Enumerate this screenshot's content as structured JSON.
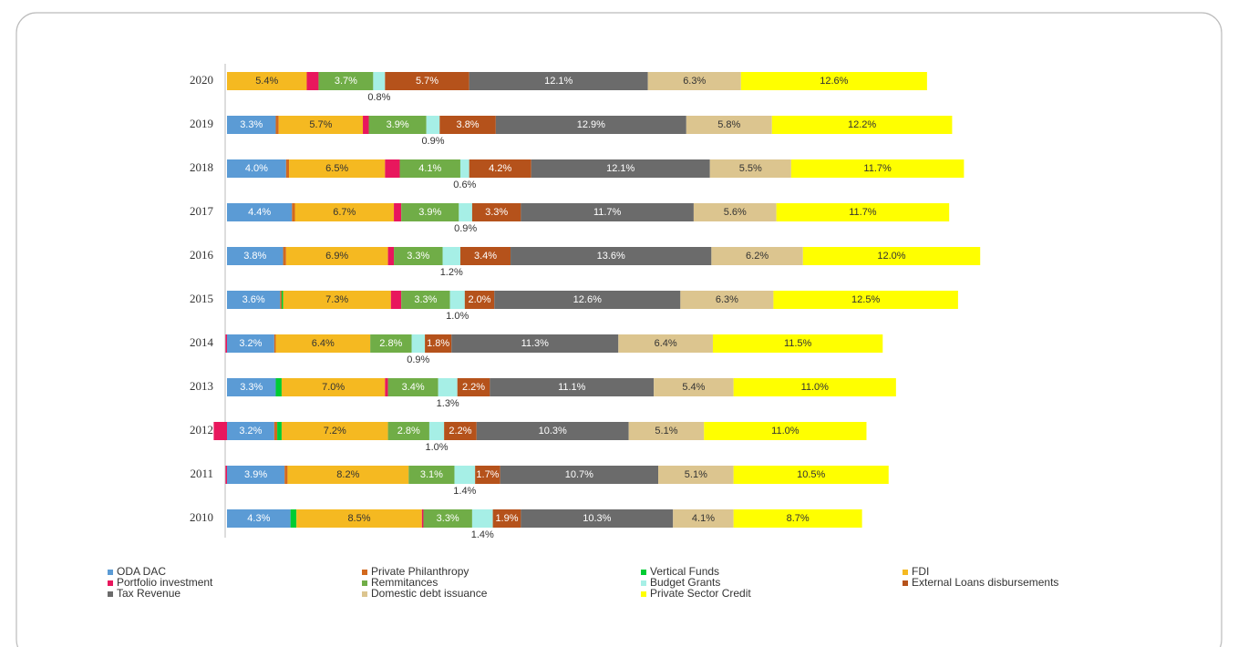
{
  "chart_data": {
    "type": "stacked-bar-horizontal",
    "categories": [
      "2020",
      "2019",
      "2018",
      "2017",
      "2016",
      "2015",
      "2014",
      "2013",
      "2012",
      "2011",
      "2010"
    ],
    "series": [
      {
        "name": "ODA DAC",
        "color": "#5b9bd5",
        "values": [
          null,
          3.3,
          4.0,
          4.4,
          3.8,
          3.6,
          3.2,
          3.3,
          3.2,
          3.9,
          4.3
        ],
        "value_labels": [
          null,
          "3.3%",
          "4.0%",
          "4.4%",
          "3.8%",
          "3.6%",
          "3.2%",
          "3.3%",
          "3.2%",
          "3.9%",
          "4.3%"
        ]
      },
      {
        "name": "Private Philanthropy",
        "color": "#d2691e",
        "values": [
          null,
          0.2,
          0.2,
          0.2,
          0.2,
          0.1,
          0.1,
          null,
          0.2,
          0.2,
          null
        ]
      },
      {
        "name": "Vertical Funds",
        "color": "#00cc33",
        "values": [
          null,
          null,
          null,
          null,
          null,
          0.1,
          null,
          0.4,
          0.3,
          null,
          0.4
        ]
      },
      {
        "name": "FDI",
        "color": "#f5b921",
        "values": [
          5.4,
          5.7,
          6.5,
          6.7,
          6.9,
          7.3,
          6.4,
          7.0,
          7.2,
          8.2,
          8.5
        ],
        "value_labels": [
          "5.4%",
          "5.7%",
          "6.5%",
          "6.7%",
          "6.9%",
          "7.3%",
          "6.4%",
          "7.0%",
          "7.2%",
          "8.2%",
          "8.5%"
        ]
      },
      {
        "name": "Portfolio investment",
        "color": "#e8175d",
        "values": [
          0.8,
          0.4,
          1.0,
          0.5,
          0.4,
          0.7,
          -0.1,
          0.2,
          -0.9,
          -0.1,
          0.1
        ]
      },
      {
        "name": "Remmitances",
        "color": "#70ad47",
        "values": [
          3.7,
          3.9,
          4.1,
          3.9,
          3.3,
          3.3,
          2.8,
          3.4,
          2.8,
          3.1,
          3.3
        ],
        "value_labels": [
          "3.7%",
          "3.9%",
          "4.1%",
          "3.9%",
          "3.3%",
          "3.3%",
          "2.8%",
          "3.4%",
          "2.8%",
          "3.1%",
          "3.3%"
        ]
      },
      {
        "name": "Budget Grants",
        "color": "#a6efe6",
        "values": [
          0.8,
          0.9,
          0.6,
          0.9,
          1.2,
          1.0,
          0.9,
          1.3,
          1.0,
          1.4,
          1.4
        ],
        "value_labels": [
          "0.8%",
          "0.9%",
          "0.6%",
          "0.9%",
          "1.2%",
          "1.0%",
          "0.9%",
          "1.3%",
          "1.0%",
          "1.4%",
          "1.4%"
        ]
      },
      {
        "name": "External Loans disbursements",
        "color": "#b5521b",
        "values": [
          5.7,
          3.8,
          4.2,
          3.3,
          3.4,
          2.0,
          1.8,
          2.2,
          2.2,
          1.7,
          1.9
        ],
        "value_labels": [
          "5.7%",
          "3.8%",
          "4.2%",
          "3.3%",
          "3.4%",
          "2.0%",
          "1.8%",
          "2.2%",
          "2.2%",
          "1.7%",
          "1.9%"
        ]
      },
      {
        "name": "Tax Revenue",
        "color": "#6b6b6b",
        "values": [
          12.1,
          12.9,
          12.1,
          11.7,
          13.6,
          12.6,
          11.3,
          11.1,
          10.3,
          10.7,
          10.3
        ],
        "value_labels": [
          "12.1%",
          "12.9%",
          "12.1%",
          "11.7%",
          "13.6%",
          "12.6%",
          "11.3%",
          "11.1%",
          "10.3%",
          "10.7%",
          "10.3%"
        ]
      },
      {
        "name": "Domestic debt issuance",
        "color": "#dcc58f",
        "values": [
          6.3,
          5.8,
          5.5,
          5.6,
          6.2,
          6.3,
          6.4,
          5.4,
          5.1,
          5.1,
          4.1
        ],
        "value_labels": [
          "6.3%",
          "5.8%",
          "5.5%",
          "5.6%",
          "6.2%",
          "6.3%",
          "6.4%",
          "5.4%",
          "5.1%",
          "5.1%",
          "4.1%"
        ]
      },
      {
        "name": "Private Sector Credit",
        "color": "#ffff00",
        "values": [
          12.6,
          12.2,
          11.7,
          11.7,
          12.0,
          12.5,
          11.5,
          11.0,
          11.0,
          10.5,
          8.7
        ],
        "value_labels": [
          "12.6%",
          "12.2%",
          "11.7%",
          "11.7%",
          "12.0%",
          "12.5%",
          "11.5%",
          "11.0%",
          "11.0%",
          "10.5%",
          "8.7%"
        ]
      }
    ]
  }
}
